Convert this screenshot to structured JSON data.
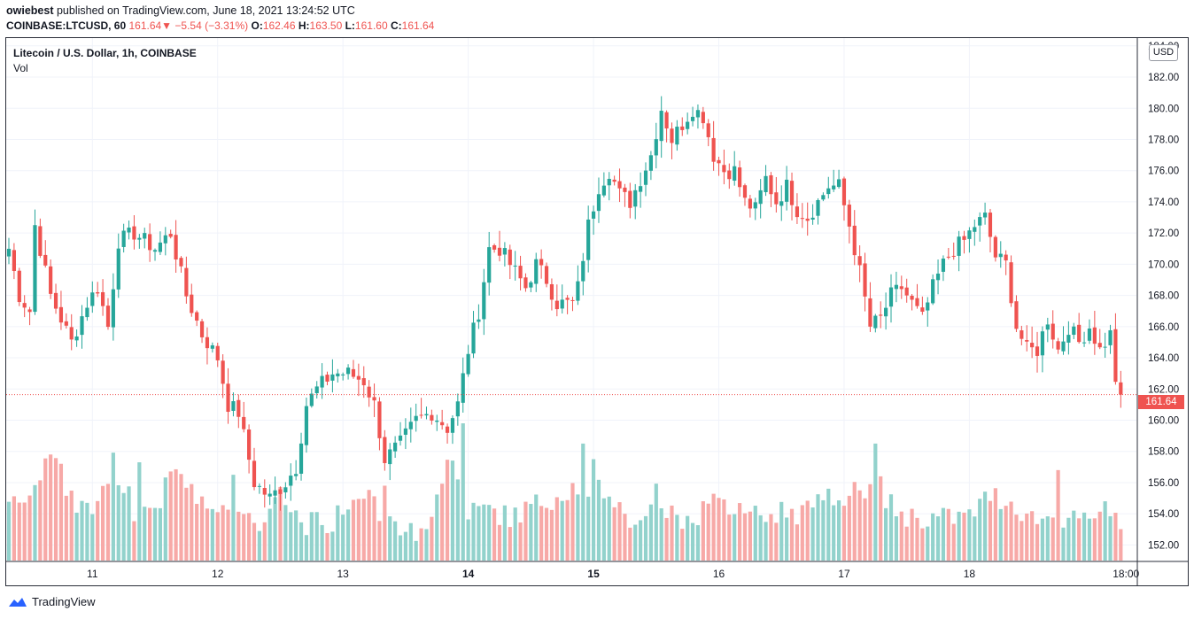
{
  "header": {
    "author": "owiebest",
    "published_text": "published on TradingView.com, June 18, 2021 13:24:52 UTC"
  },
  "quote": {
    "symbol": "COINBASE:LTCUSD, 60",
    "last": "161.64",
    "change_arrow": "▼",
    "change": "−5.54 (−3.31%)",
    "o_label": "O:",
    "o": "162.46",
    "h_label": "H:",
    "h": "163.50",
    "l_label": "L:",
    "l": "161.60",
    "c_label": "C:",
    "c": "161.64"
  },
  "legend": {
    "title": "Litecoin / U.S. Dollar, 1h, COINBASE",
    "volume": "Vol"
  },
  "currency_button": "USD",
  "last_price_tag": "161.64",
  "footer": {
    "brand": "TradingView"
  },
  "colors": {
    "up": "#26a69a",
    "down": "#ef5350",
    "up_vol": "#92d2cc",
    "down_vol": "#f7a9a7"
  },
  "chart_data": {
    "type": "candlestick",
    "title": "Litecoin / U.S. Dollar, 1h, COINBASE",
    "x_tick_labels": [
      "11",
      "12",
      "13",
      "14",
      "15",
      "16",
      "17",
      "18",
      "18:00"
    ],
    "y_tick_labels": [
      "152.00",
      "154.00",
      "156.00",
      "158.00",
      "160.00",
      "162.00",
      "164.00",
      "166.00",
      "168.00",
      "170.00",
      "172.00",
      "174.00",
      "176.00",
      "178.00",
      "180.00",
      "182.00",
      "184.00"
    ],
    "ylim": [
      151.0,
      184.5
    ],
    "last_price": 161.64,
    "grid": true,
    "anchors": [
      [
        "Jun 10 08:00",
        171.0
      ],
      [
        "Jun 10 10:00",
        168.0
      ],
      [
        "Jun 10 12:00",
        167.0
      ],
      [
        "Jun 10 13:00",
        172.5
      ],
      [
        "Jun 10 16:00",
        168.0
      ],
      [
        "Jun 10 20:00",
        165.0
      ],
      [
        "Jun 10 23:00",
        167.5
      ],
      [
        "Jun 11 01:00",
        168.5
      ],
      [
        "Jun 11 03:00",
        166.0
      ],
      [
        "Jun 11 05:00",
        171.5
      ],
      [
        "Jun 11 08:00",
        172.0
      ],
      [
        "Jun 11 12:00",
        171.0
      ],
      [
        "Jun 11 15:00",
        172.0
      ],
      [
        "Jun 11 18:00",
        168.0
      ],
      [
        "Jun 11 21:00",
        165.5
      ],
      [
        "Jun 12 00:00",
        164.0
      ],
      [
        "Jun 12 02:00",
        161.0
      ],
      [
        "Jun 12 04:00",
        160.5
      ],
      [
        "Jun 12 07:00",
        156.0
      ],
      [
        "Jun 12 10:00",
        155.0
      ],
      [
        "Jun 12 13:00",
        156.0
      ],
      [
        "Jun 12 15:00",
        157.0
      ],
      [
        "Jun 12 17:00",
        161.0
      ],
      [
        "Jun 12 19:00",
        162.0
      ],
      [
        "Jun 12 22:00",
        163.0
      ],
      [
        "Jun 13 01:00",
        163.0
      ],
      [
        "Jun 13 04:00",
        162.5
      ],
      [
        "Jun 13 06:00",
        161.0
      ],
      [
        "Jun 13 08:00",
        157.5
      ],
      [
        "Jun 13 11:00",
        158.5
      ],
      [
        "Jun 13 14:00",
        160.0
      ],
      [
        "Jun 13 17:00",
        160.5
      ],
      [
        "Jun 13 20:00",
        159.5
      ],
      [
        "Jun 13 22:00",
        161.0
      ],
      [
        "Jun 14 00:00",
        164.5
      ],
      [
        "Jun 14 02:00",
        167.0
      ],
      [
        "Jun 14 04:00",
        171.0
      ],
      [
        "Jun 14 06:00",
        171.0
      ],
      [
        "Jun 14 09:00",
        169.5
      ],
      [
        "Jun 14 11:00",
        168.5
      ],
      [
        "Jun 14 13:00",
        170.0
      ],
      [
        "Jun 14 15:00",
        169.0
      ],
      [
        "Jun 14 17:00",
        167.5
      ],
      [
        "Jun 14 20:00",
        167.5
      ],
      [
        "Jun 14 21:00",
        168.5
      ],
      [
        "Jun 14 23:00",
        172.5
      ],
      [
        "Jun 15 01:00",
        175.0
      ],
      [
        "Jun 15 03:00",
        176.0
      ],
      [
        "Jun 15 05:00",
        174.5
      ],
      [
        "Jun 15 07:00",
        174.0
      ],
      [
        "Jun 15 09:00",
        175.5
      ],
      [
        "Jun 15 11:00",
        177.0
      ],
      [
        "Jun 15 13:00",
        180.0
      ],
      [
        "Jun 15 15:00",
        178.0
      ],
      [
        "Jun 15 17:00",
        179.0
      ],
      [
        "Jun 15 19:00",
        180.0
      ],
      [
        "Jun 15 21:00",
        179.5
      ],
      [
        "Jun 15 23:00",
        177.0
      ],
      [
        "Jun 16 01:00",
        176.0
      ],
      [
        "Jun 16 03:00",
        176.0
      ],
      [
        "Jun 16 05:00",
        174.0
      ],
      [
        "Jun 16 07:00",
        173.5
      ],
      [
        "Jun 16 09:00",
        175.5
      ],
      [
        "Jun 16 11:00",
        174.0
      ],
      [
        "Jun 16 13:00",
        175.0
      ],
      [
        "Jun 16 15:00",
        173.5
      ],
      [
        "Jun 16 17:00",
        173.0
      ],
      [
        "Jun 16 19:00",
        174.0
      ],
      [
        "Jun 16 21:00",
        175.0
      ],
      [
        "Jun 16 23:00",
        175.0
      ],
      [
        "Jun 17 01:00",
        172.5
      ],
      [
        "Jun 17 03:00",
        169.5
      ],
      [
        "Jun 17 05:00",
        166.0
      ],
      [
        "Jun 17 07:00",
        166.5
      ],
      [
        "Jun 17 09:00",
        168.0
      ],
      [
        "Jun 17 11:00",
        168.5
      ],
      [
        "Jun 17 13:00",
        167.5
      ],
      [
        "Jun 17 15:00",
        166.5
      ],
      [
        "Jun 17 17:00",
        168.5
      ],
      [
        "Jun 17 19:00",
        170.0
      ],
      [
        "Jun 17 21:00",
        171.0
      ],
      [
        "Jun 17 23:00",
        171.5
      ],
      [
        "Jun 18 01:00",
        172.5
      ],
      [
        "Jun 18 03:00",
        173.0
      ],
      [
        "Jun 18 05:00",
        170.5
      ],
      [
        "Jun 18 07:00",
        170.0
      ],
      [
        "Jun 18 09:00",
        166.0
      ],
      [
        "Jun 18 11:00",
        164.5
      ],
      [
        "Jun 18 13:00",
        164.5
      ],
      [
        "Jun 18 15:00",
        166.5
      ],
      [
        "Jun 18 17:00",
        164.5
      ],
      [
        "Jun 18 19:00",
        166.0
      ],
      [
        "Jun 18 21:00",
        165.0
      ],
      [
        "Jun 18 23:00",
        166.0
      ],
      [
        "Jun 19 01:00",
        164.5
      ],
      [
        "Jun 19 03:00",
        165.5
      ],
      [
        "Jun 19 04:00",
        162.46
      ],
      [
        "Jun 19 05:00",
        161.64
      ]
    ],
    "volume_profile": [
      [
        "Jun 10 08:00",
        154
      ],
      [
        "Jun 10 12:00",
        155
      ],
      [
        "Jun 10 16:00",
        158
      ],
      [
        "Jun 10 20:00",
        154.5
      ],
      [
        "Jun 11 00:00",
        154
      ],
      [
        "Jun 11 04:00",
        157
      ],
      [
        "Jun 11 08:00",
        154
      ],
      [
        "Jun 11 12:00",
        154.2
      ],
      [
        "Jun 11 16:00",
        156.5
      ],
      [
        "Jun 11 20:00",
        155
      ],
      [
        "Jun 12 00:00",
        154.5
      ],
      [
        "Jun 12 04:00",
        154
      ],
      [
        "Jun 12 08:00",
        153
      ],
      [
        "Jun 12 12:00",
        155
      ],
      [
        "Jun 12 16:00",
        153
      ],
      [
        "Jun 12 20:00",
        153.2
      ],
      [
        "Jun 13 00:00",
        153.6
      ],
      [
        "Jun 13 04:00",
        155.5
      ],
      [
        "Jun 13 08:00",
        153
      ],
      [
        "Jun 13 12:00",
        152.5
      ],
      [
        "Jun 13 16:00",
        153
      ],
      [
        "Jun 13 20:00",
        157.5
      ],
      [
        "Jun 14 00:00",
        154
      ],
      [
        "Jun 14 04:00",
        154
      ],
      [
        "Jun 14 08:00",
        153.5
      ],
      [
        "Jun 14 12:00",
        154.2
      ],
      [
        "Jun 14 16:00",
        154.8
      ],
      [
        "Jun 14 20:00",
        155.5
      ],
      [
        "Jun 15 00:00",
        155.5
      ],
      [
        "Jun 15 04:00",
        154.5
      ],
      [
        "Jun 15 08:00",
        153
      ],
      [
        "Jun 15 12:00",
        155
      ],
      [
        "Jun 15 16:00",
        153.5
      ],
      [
        "Jun 15 20:00",
        153.6
      ],
      [
        "Jun 16 00:00",
        154.5
      ],
      [
        "Jun 16 04:00",
        153.8
      ],
      [
        "Jun 16 08:00",
        153.5
      ],
      [
        "Jun 16 12:00",
        154
      ],
      [
        "Jun 16 16:00",
        153.8
      ],
      [
        "Jun 16 20:00",
        154.5
      ],
      [
        "Jun 17 00:00",
        155
      ],
      [
        "Jun 17 04:00",
        155.5
      ],
      [
        "Jun 17 08:00",
        154.5
      ],
      [
        "Jun 17 12:00",
        153.6
      ],
      [
        "Jun 17 16:00",
        153.5
      ],
      [
        "Jun 17 20:00",
        153.5
      ],
      [
        "Jun 18 00:00",
        153.6
      ],
      [
        "Jun 18 04:00",
        155
      ],
      [
        "Jun 18 08:00",
        154.5
      ],
      [
        "Jun 18 12:00",
        153.5
      ],
      [
        "Jun 18 16:00",
        153.5
      ],
      [
        "Jun 18 20:00",
        153.5
      ],
      [
        "Jun 19 00:00",
        153.5
      ],
      [
        "Jun 19 05:00",
        153.3
      ]
    ],
    "volume_spikes": [
      [
        "Jun 10 16:00",
        157.8
      ],
      [
        "Jun 11 09:00",
        157.3
      ],
      [
        "Jun 12 03:00",
        156.5
      ],
      [
        "Jun 13 08:00",
        155.8
      ],
      [
        "Jun 13 23:00",
        159.8
      ],
      [
        "Jun 14 22:00",
        158.5
      ],
      [
        "Jun 15 00:00",
        157.5
      ],
      [
        "Jun 17 06:00",
        158.5
      ],
      [
        "Jun 17 07:00",
        156.4
      ],
      [
        "Jun 18 17:00",
        156.8
      ],
      [
        "Jun 19 02:00",
        154.8
      ]
    ]
  }
}
